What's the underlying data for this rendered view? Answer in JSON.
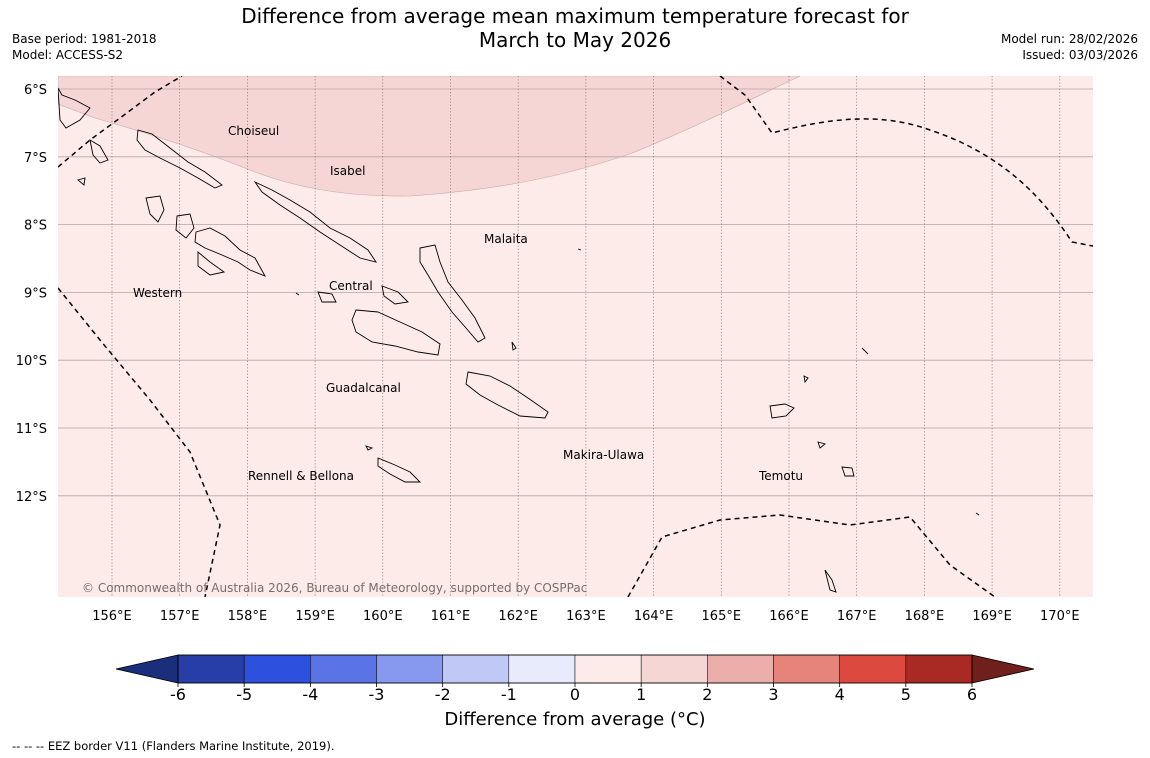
{
  "title": {
    "line1": "Difference from average mean maximum temperature forecast for",
    "line2": "March to May 2026"
  },
  "meta_left": {
    "base_period": "Base period: 1981-2018",
    "model": "Model: ACCESS-S2"
  },
  "meta_right": {
    "model_run": "Model run: 28/02/2026",
    "issued": "Issued: 03/03/2026"
  },
  "map": {
    "lat_labels": [
      "6°S",
      "7°S",
      "8°S",
      "9°S",
      "10°S",
      "11°S",
      "12°S"
    ],
    "lon_labels": [
      "156°E",
      "157°E",
      "158°E",
      "159°E",
      "160°E",
      "161°E",
      "162°E",
      "163°E",
      "164°E",
      "165°E",
      "166°E",
      "167°E",
      "168°E",
      "169°E",
      "170°E"
    ],
    "regions": {
      "choiseul": "Choiseul",
      "isabel": "Isabel",
      "malaita": "Malaita",
      "western": "Western",
      "central": "Central",
      "guadalcanal": "Guadalcanal",
      "makira": "Makira-Ulawa",
      "rennell": "Rennell & Bellona",
      "temotu": "Temotu"
    },
    "copyright": "© Commonwealth of Australia 2026, Bureau of Meteorology, supported by COSPPac",
    "fill_colors": {
      "anomaly_0_1": "#fcebe9",
      "anomaly_1_2": "#f5d6d4"
    }
  },
  "colorbar": {
    "ticks": [
      "-6",
      "-5",
      "-4",
      "-3",
      "-2",
      "-1",
      "0",
      "1",
      "2",
      "3",
      "4",
      "5",
      "6"
    ],
    "colors": [
      "#273ea8",
      "#2e50df",
      "#5a73e6",
      "#8799ee",
      "#c0c8f5",
      "#e8ebfc",
      "#fcebe9",
      "#f5d6d4",
      "#ecaeab",
      "#e6837b",
      "#dc4a3f",
      "#a92a24"
    ],
    "end_low": "#1b2e7c",
    "end_high": "#70201c",
    "label": "Difference from average (°C)"
  },
  "footnote": "--  --  -- EEZ border V11 (Flanders Marine Institute, 2019)."
}
